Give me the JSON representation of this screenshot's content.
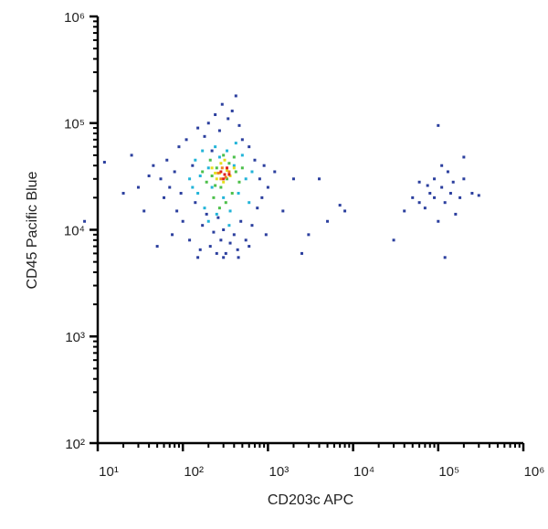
{
  "chart_data": {
    "type": "scatter",
    "x_label": "CD203c APC",
    "y_label": "CD45 Pacific Blue",
    "xscale": "log",
    "yscale": "log",
    "xlim": [
      10,
      1000000
    ],
    "ylim": [
      100,
      1000000
    ],
    "xticks": [
      {
        "value": 10,
        "label": "10¹"
      },
      {
        "value": 100,
        "label": "10²"
      },
      {
        "value": 1000,
        "label": "10³"
      },
      {
        "value": 10000,
        "label": "10⁴"
      },
      {
        "value": 100000,
        "label": "10⁵"
      },
      {
        "value": 1000000,
        "label": "10⁶"
      }
    ],
    "yticks": [
      {
        "value": 100,
        "label": "10²"
      },
      {
        "value": 1000,
        "label": "10³"
      },
      {
        "value": 10000,
        "label": "10⁴"
      },
      {
        "value": 100000,
        "label": "10⁵"
      },
      {
        "value": 1000000,
        "label": "10⁶"
      }
    ],
    "minor_ticks": true,
    "series": [
      {
        "color": "#2b3f9e",
        "x": [
          55,
          60,
          65,
          70,
          75,
          80,
          85,
          90,
          95,
          100,
          110,
          120,
          130,
          140,
          150,
          160,
          170,
          180,
          190,
          200,
          210,
          220,
          230,
          240,
          250,
          260,
          270,
          280,
          290,
          300,
          320,
          340,
          360,
          380,
          400,
          420,
          440,
          460,
          480,
          500,
          550,
          600,
          650,
          700,
          750,
          800,
          850,
          900,
          950,
          1000,
          1200,
          1500,
          2000,
          2500,
          3000,
          4000,
          5000,
          7000,
          8000,
          40,
          30,
          20,
          12,
          7,
          50,
          45,
          35,
          25,
          150,
          300,
          450,
          600,
          30000,
          40000,
          50000,
          60000,
          70000,
          80000,
          90000,
          100000,
          110000,
          120000,
          130000,
          140000,
          150000,
          160000,
          180000,
          200000,
          250000,
          300000,
          100000,
          200000,
          60000,
          90000,
          120000,
          75000,
          110000
        ],
        "values": [
          30000,
          20000,
          45000,
          25000,
          9000,
          35000,
          15000,
          60000,
          22000,
          12000,
          70000,
          8000,
          40000,
          18000,
          90000,
          6500,
          11000,
          75000,
          14000,
          100000,
          7000,
          55000,
          9500,
          120000,
          6000,
          13000,
          85000,
          8000,
          150000,
          10000,
          6000,
          110000,
          7500,
          130000,
          9000,
          180000,
          6500,
          95000,
          12000,
          70000,
          8000,
          60000,
          11000,
          45000,
          16000,
          30000,
          20000,
          40000,
          9000,
          25000,
          35000,
          15000,
          30000,
          6000,
          9000,
          30000,
          12000,
          17000,
          15000,
          32000,
          25000,
          22000,
          43000,
          12000,
          7000,
          40000,
          15000,
          50000,
          5500,
          5500,
          5500,
          7000,
          8000,
          15000,
          20000,
          28000,
          16000,
          22000,
          30000,
          12000,
          25000,
          18000,
          35000,
          22000,
          28000,
          14000,
          20000,
          30000,
          22000,
          21000,
          95000,
          48000,
          18000,
          20000,
          5500,
          26000,
          40000
        ]
      },
      {
        "color": "#22b4d8",
        "x": [
          120,
          140,
          150,
          170,
          180,
          200,
          220,
          240,
          250,
          270,
          300,
          330,
          360,
          400,
          450,
          500,
          550,
          600,
          650,
          160,
          200,
          350,
          420,
          130
        ],
        "values": [
          30000,
          45000,
          22000,
          55000,
          16000,
          38000,
          25000,
          60000,
          14000,
          48000,
          20000,
          55000,
          15000,
          40000,
          22000,
          50000,
          30000,
          18000,
          35000,
          32000,
          12000,
          11000,
          65000,
          25000
        ]
      },
      {
        "color": "#4cbf4a",
        "x": [
          170,
          190,
          210,
          230,
          250,
          280,
          300,
          320,
          350,
          380,
          420,
          460,
          500,
          220,
          270,
          400,
          330,
          240
        ],
        "values": [
          35000,
          28000,
          45000,
          20000,
          38000,
          25000,
          50000,
          18000,
          42000,
          22000,
          35000,
          28000,
          38000,
          32000,
          16000,
          48000,
          30000,
          26000
        ]
      },
      {
        "color": "#e6df1e",
        "x": [
          220,
          250,
          280,
          300,
          330,
          360,
          400,
          270,
          310,
          240
        ],
        "values": [
          38000,
          30000,
          42000,
          28000,
          36000,
          32000,
          38000,
          34000,
          45000,
          34000
        ]
      },
      {
        "color": "#f0821e",
        "x": [
          260,
          290,
          320,
          350,
          280
        ],
        "values": [
          34000,
          38000,
          31000,
          35000,
          30000
        ]
      },
      {
        "color": "#e01e1e",
        "x": [
          280,
          310,
          330,
          300,
          350
        ],
        "values": [
          35000,
          33000,
          38000,
          30000,
          33000
        ]
      }
    ]
  }
}
